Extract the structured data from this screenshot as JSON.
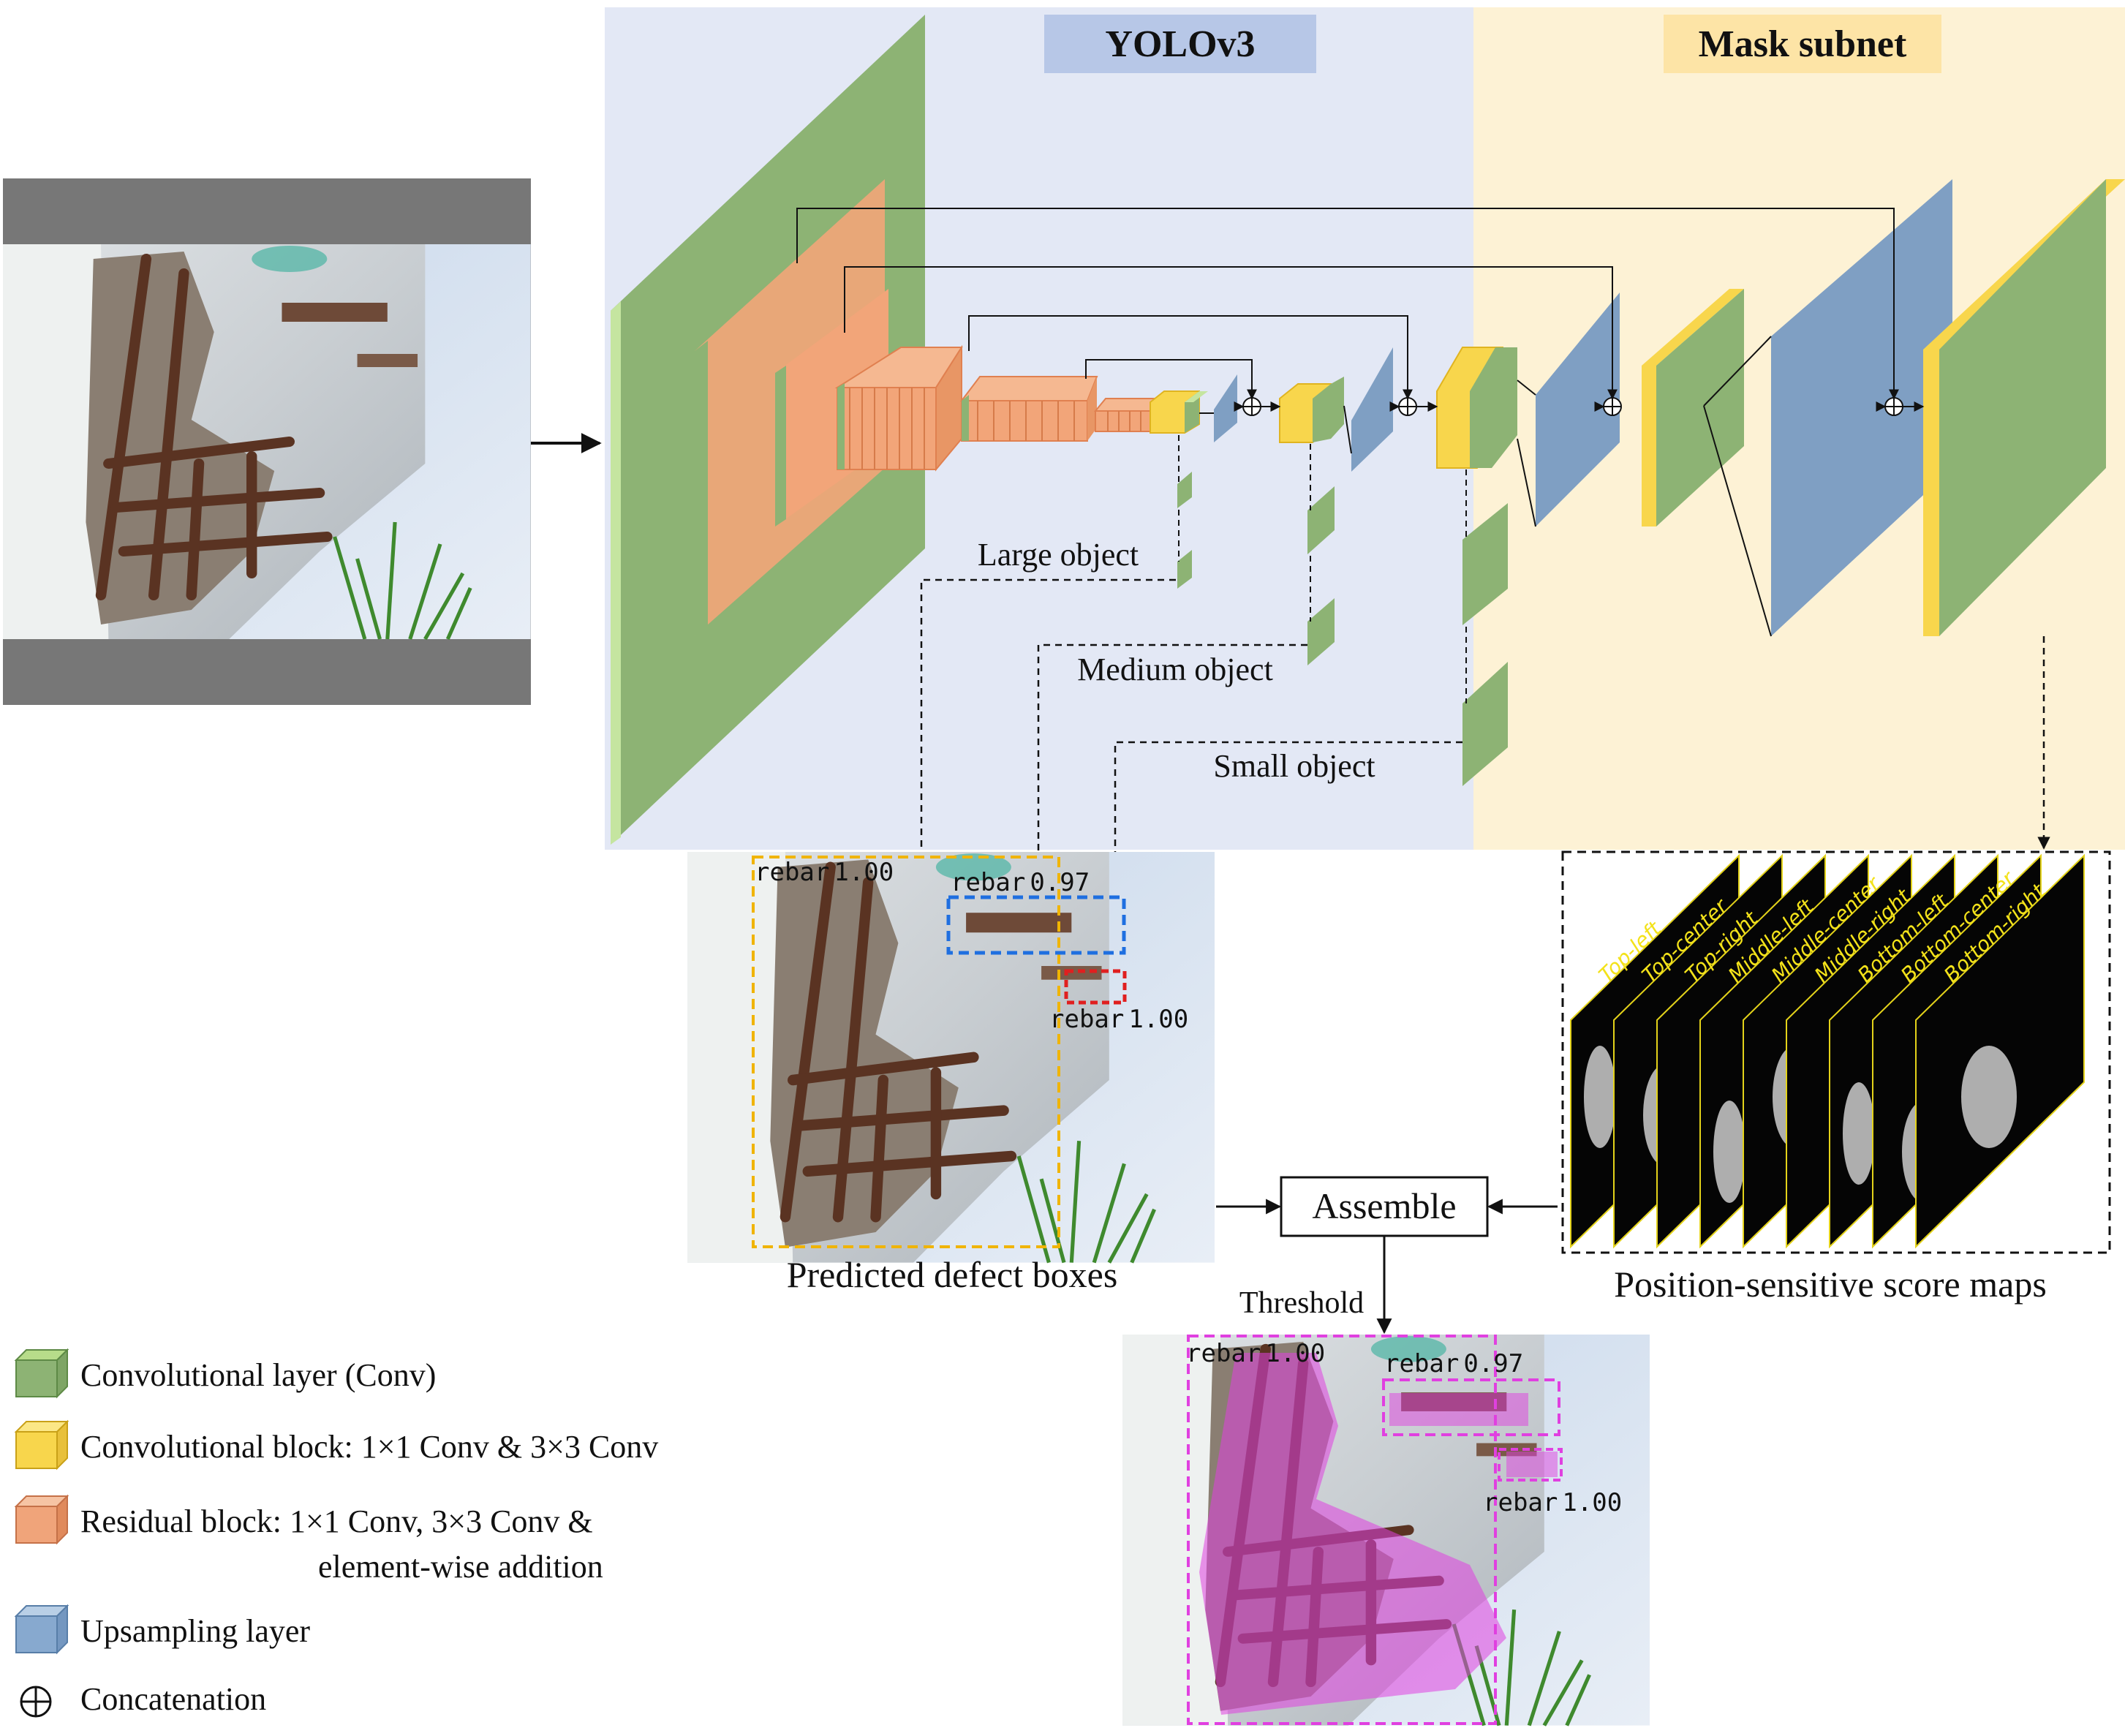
{
  "panels": {
    "yolo_title": "YOLOv3",
    "mask_title": "Mask subnet",
    "yolo_bg": "#e3e8f5",
    "mask_bg": "#fdf2d5"
  },
  "outputs": {
    "large": "Large object",
    "medium": "Medium object",
    "small": "Small object"
  },
  "detections": [
    {
      "label": "rebar",
      "score": "1.00",
      "color": "#f0b400"
    },
    {
      "label": "rebar",
      "score": "0.97",
      "color": "#1f6fe0"
    },
    {
      "label": "rebar",
      "score": "1.00",
      "color": "#e01f1f"
    }
  ],
  "mask_detections": [
    {
      "label": "rebar",
      "score": "1.00"
    },
    {
      "label": "rebar",
      "score": "0.97"
    },
    {
      "label": "rebar",
      "score": "1.00"
    }
  ],
  "captions": {
    "boxes": "Predicted defect boxes",
    "score_maps": "Position-sensitive score maps",
    "assemble": "Assemble",
    "threshold": "Threshold"
  },
  "score_maps": [
    "Top-left",
    "Top-center",
    "Top-right",
    "Middle-left",
    "Middle-center",
    "Middle-right",
    "Bottom-left",
    "Bottom-center",
    "Bottom-right"
  ],
  "legend": [
    {
      "label": "Convolutional layer (Conv)",
      "color": "#8db374"
    },
    {
      "label": "Convolutional block: 1×1 Conv & 3×3 Conv",
      "color": "#f6d34a"
    },
    {
      "label": "Residual block: 1×1 Conv, 3×3 Conv &",
      "label2": "element-wise addition",
      "color": "#f0a47a"
    },
    {
      "label": "Upsampling layer",
      "color": "#87a9cf"
    },
    {
      "label": "Concatenation",
      "icon": "circle-plus-icon"
    }
  ],
  "colors": {
    "conv": "#8db374",
    "conv_side": "#b7dc8a",
    "block": "#f8d64c",
    "residual": "#f2a579",
    "upsample": "#7f9fc3",
    "mask": "#e040e0"
  }
}
